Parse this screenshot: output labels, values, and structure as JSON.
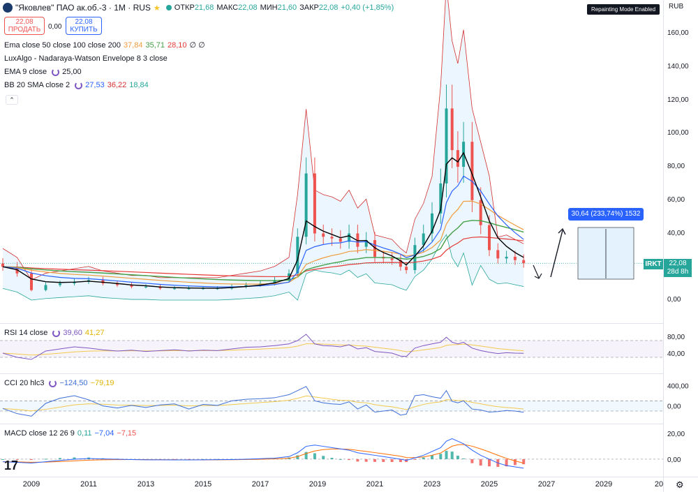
{
  "header": {
    "symbol": "\"Яковлев\" ПАО ак.об.-3 · 1M · RUS",
    "ohlc": {
      "open_label": "ОТКР",
      "open": "21,68",
      "high_label": "МАКС",
      "high": "22,08",
      "low_label": "МИН",
      "low": "21,60",
      "close_label": "ЗАКР",
      "close": "22,08",
      "change": "+0,40 (+1,85%)"
    },
    "repainting_badge": "Repainting Mode Enabled",
    "currency": "RUB"
  },
  "trade": {
    "sell_price": "22,08",
    "sell_label": "ПРОДАТЬ",
    "spread": "0,00",
    "buy_price": "22,08",
    "buy_label": "КУПИТЬ"
  },
  "legends": {
    "ema_multi": {
      "label": "Ema close 50 close 100 close 200",
      "v1": "37,84",
      "v2": "35,71",
      "v3": "28,10",
      "v4": "∅ ∅"
    },
    "luxalgo": {
      "label": "LuxAlgo - Nadaraya-Watson Envelope 8 3 close"
    },
    "ema9": {
      "label": "EMA 9 close",
      "v1": "25,00"
    },
    "bb": {
      "label": "BB 20 SMA close 2",
      "v1": "27,53",
      "v2": "36,22",
      "v3": "18,84"
    },
    "rsi": {
      "label": "RSI 14 close",
      "v1": "39,60",
      "v2": "41,27"
    },
    "cci": {
      "label": "CCI 20 hlc3",
      "v1": "−124,50",
      "v2": "−79,19"
    },
    "macd": {
      "label": "MACD close 12 26 9",
      "v1": "0,11",
      "v2": "−7,04",
      "v3": "−7,15"
    }
  },
  "annotation": {
    "measure_label": "30,64 (233,74%) 1532"
  },
  "price_tag": {
    "ticker": "IRKT",
    "price": "22,08",
    "countdown": "28d 8h"
  },
  "colors": {
    "up": "#26a69a",
    "down": "#ef5350",
    "ema50": "#f09b3c",
    "ema100": "#43a047",
    "ema200": "#e53935",
    "ema9": "#000000",
    "bb_basis": "#2962ff",
    "bb_band": "#d32f2f",
    "bb_fill": "#e3f2fd",
    "rsi": "#7e57c2",
    "rsi_ma": "#f2c94c",
    "cci": "#3f6fd6",
    "macd": "#2962ff",
    "signal": "#ff6d00"
  },
  "chart_data": [
    {
      "type": "candlestick",
      "pane": "price",
      "x_axis_ticks": [
        "2009",
        "2011",
        "2013",
        "2015",
        "2017",
        "2019",
        "2021",
        "2023",
        "2025",
        "2027",
        "2029",
        "20"
      ],
      "y_axis_ticks": [
        "160,00",
        "140,00",
        "120,00",
        "100,00",
        "80,00",
        "60,00",
        "40,00",
        "20,00",
        "0,00"
      ],
      "ylim": [
        0,
        160
      ],
      "x": [
        2008.0,
        2008.5,
        2009.0,
        2009.5,
        2010.0,
        2010.5,
        2011.0,
        2011.5,
        2012.0,
        2012.5,
        2013.0,
        2013.5,
        2014.0,
        2014.5,
        2015.0,
        2015.5,
        2016.0,
        2016.5,
        2017.0,
        2017.5,
        2018.0,
        2018.3,
        2018.6,
        2018.9,
        2019.2,
        2019.5,
        2019.8,
        2020.1,
        2020.4,
        2020.7,
        2021.0,
        2021.3,
        2021.6,
        2021.9,
        2022.1,
        2022.4,
        2022.7,
        2023.0,
        2023.3,
        2023.5,
        2023.7,
        2023.9,
        2024.1,
        2024.4,
        2024.7,
        2025.0,
        2025.3,
        2025.6,
        2025.9,
        2026.2
      ],
      "close": [
        20,
        16,
        6,
        9,
        10,
        11,
        12,
        10,
        9,
        8,
        8,
        7,
        7,
        7,
        7,
        7,
        8,
        9,
        10,
        12,
        16,
        38,
        76,
        40,
        38,
        37,
        35,
        40,
        32,
        36,
        26,
        25,
        24,
        20,
        18,
        33,
        40,
        52,
        70,
        115,
        90,
        80,
        95,
        60,
        45,
        30,
        25,
        26,
        24,
        22.08
      ]
    },
    {
      "type": "line",
      "pane": "rsi",
      "y_axis_ticks": [
        "80,00",
        "40,00"
      ],
      "ylim": [
        0,
        100
      ],
      "series": [
        {
          "name": "RSI",
          "values": [
            40,
            30,
            25,
            45,
            50,
            55,
            52,
            48,
            45,
            47,
            44,
            46,
            48,
            45,
            47,
            46,
            50,
            54,
            55,
            58,
            62,
            70,
            85,
            62,
            58,
            57,
            55,
            60,
            50,
            53,
            44,
            42,
            40,
            33,
            32,
            52,
            58,
            62,
            66,
            78,
            66,
            62,
            66,
            52,
            46,
            42,
            39,
            41,
            40,
            39.6
          ]
        }
      ]
    },
    {
      "type": "line",
      "pane": "cci",
      "y_axis_ticks": [
        "400,00",
        "0,00"
      ],
      "ylim": [
        -250,
        500
      ],
      "series": [
        {
          "name": "CCI",
          "values": [
            -50,
            -150,
            -200,
            50,
            150,
            200,
            120,
            0,
            -40,
            10,
            -30,
            20,
            40,
            -60,
            30,
            10,
            100,
            130,
            140,
            160,
            220,
            300,
            380,
            100,
            60,
            40,
            30,
            80,
            -60,
            20,
            -120,
            -100,
            -80,
            -180,
            -160,
            200,
            220,
            180,
            150,
            300,
            90,
            60,
            100,
            -60,
            -80,
            -120,
            -110,
            -90,
            -100,
            -124.5
          ]
        }
      ]
    },
    {
      "type": "bar",
      "pane": "macd",
      "y_axis_ticks": [
        "20,00",
        "0,00"
      ],
      "ylim": [
        -12,
        25
      ],
      "series": [
        {
          "name": "MACD",
          "values": [
            -2,
            -2.5,
            -3,
            -2,
            -1,
            0,
            0.5,
            0.2,
            0,
            -0.3,
            -0.5,
            -0.5,
            -0.6,
            -0.6,
            -0.5,
            -0.4,
            -0.3,
            0,
            0.4,
            0.8,
            2,
            5,
            10,
            11,
            10,
            9,
            8,
            7,
            5,
            4,
            3,
            2,
            1,
            0,
            -1,
            1,
            3,
            6,
            9,
            14,
            16,
            14,
            12,
            7,
            3,
            0,
            -3,
            -5,
            -6,
            -7.04
          ]
        }
      ]
    }
  ]
}
